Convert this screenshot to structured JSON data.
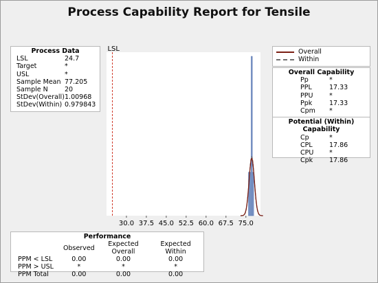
{
  "title": "Process Capability Report for Tensile",
  "process_data": {
    "heading": "Process Data",
    "rows": [
      {
        "label": "LSL",
        "value": "24.7"
      },
      {
        "label": "Target",
        "value": "*"
      },
      {
        "label": "USL",
        "value": "*"
      },
      {
        "label": "Sample Mean",
        "value": "77.205"
      },
      {
        "label": "Sample N",
        "value": "20"
      },
      {
        "label": "StDev(Overall)",
        "value": "1.00968"
      },
      {
        "label": "StDev(Within)",
        "value": "0.979843"
      }
    ]
  },
  "legend": {
    "overall_label": "Overall",
    "within_label": "Within",
    "overall_color": "#7a1d12",
    "within_color": "#707070"
  },
  "overall_capability": {
    "heading": "Overall Capability",
    "rows": [
      {
        "label": "Pp",
        "value": "*"
      },
      {
        "label": "PPL",
        "value": "17.33"
      },
      {
        "label": "PPU",
        "value": "*"
      },
      {
        "label": "Ppk",
        "value": "17.33"
      },
      {
        "label": "Cpm",
        "value": "*"
      }
    ]
  },
  "potential_capability": {
    "heading": "Potential (Within) Capability",
    "rows": [
      {
        "label": "Cp",
        "value": "*"
      },
      {
        "label": "CPL",
        "value": "17.86"
      },
      {
        "label": "CPU",
        "value": "*"
      },
      {
        "label": "Cpk",
        "value": "17.86"
      }
    ]
  },
  "performance": {
    "heading": "Performance",
    "columns": [
      "",
      "Observed",
      "Expected Overall",
      "Expected Within"
    ],
    "rows": [
      {
        "label": "PPM < LSL",
        "observed": "0.00",
        "expected_overall": "0.00",
        "expected_within": "0.00"
      },
      {
        "label": "PPM > USL",
        "observed": "*",
        "expected_overall": "*",
        "expected_within": "*"
      },
      {
        "label": "PPM Total",
        "observed": "0.00",
        "expected_overall": "0.00",
        "expected_within": "0.00"
      }
    ]
  },
  "chart_data": {
    "type": "bar",
    "subtype": "histogram-with-normal-curves",
    "x_range": [
      22.5,
      80.5
    ],
    "x_ticks": [
      30.0,
      37.5,
      45.0,
      52.5,
      60.0,
      67.5,
      75.0
    ],
    "x_tick_labels": [
      "30.0",
      "37.5",
      "45.0",
      "52.5",
      "60.0",
      "67.5",
      "75.0"
    ],
    "lsl": {
      "value": 24.7,
      "label": "LSL",
      "color": "#d03a2a"
    },
    "bar_color": "#7f98c8",
    "bar_edge_color": "#5c78b0",
    "bins": [
      {
        "x0": 75.95,
        "x1": 76.45,
        "count": 3
      },
      {
        "x0": 76.45,
        "x1": 76.95,
        "count": 3
      },
      {
        "x0": 76.95,
        "x1": 77.45,
        "count": 11
      },
      {
        "x0": 77.45,
        "x1": 77.95,
        "count": 3
      }
    ],
    "mean": 77.205,
    "stdev_overall": 1.00968,
    "stdev_within": 0.979843,
    "n": 20
  }
}
